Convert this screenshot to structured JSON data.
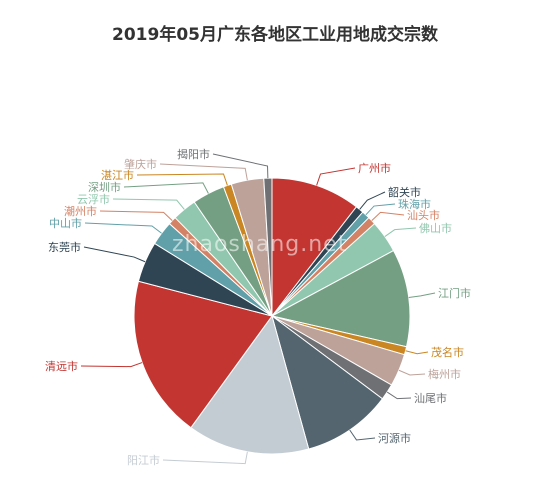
{
  "chart_data": {
    "type": "pie",
    "title": "2019年05月广东各地区工业用地成交宗数",
    "start_angle_deg": 90,
    "direction": "clockwise",
    "slices": [
      {
        "label": "广州市",
        "value": 11,
        "color": "#c23531"
      },
      {
        "label": "韶关市",
        "value": 1,
        "color": "#2f4554"
      },
      {
        "label": "珠海市",
        "value": 1,
        "color": "#61a0a8"
      },
      {
        "label": "汕头市",
        "value": 1,
        "color": "#d48265"
      },
      {
        "label": "佛山市",
        "value": 4,
        "color": "#91c7ae"
      },
      {
        "label": "江门市",
        "value": 12,
        "color": "#749f83"
      },
      {
        "label": "茂名市",
        "value": 1,
        "color": "#ca8622"
      },
      {
        "label": "梅州市",
        "value": 4,
        "color": "#bda29a"
      },
      {
        "label": "汕尾市",
        "value": 2,
        "color": "#6e7074"
      },
      {
        "label": "河源市",
        "value": 11,
        "color": "#546570"
      },
      {
        "label": "阳江市",
        "value": 15,
        "color": "#c4ccd3"
      },
      {
        "label": "清远市",
        "value": 20,
        "color": "#c23531"
      },
      {
        "label": "东莞市",
        "value": 5,
        "color": "#2f4554"
      },
      {
        "label": "中山市",
        "value": 3,
        "color": "#61a0a8"
      },
      {
        "label": "潮州市",
        "value": 1,
        "color": "#d48265"
      },
      {
        "label": "云浮市",
        "value": 3,
        "color": "#91c7ae"
      },
      {
        "label": "深圳市",
        "value": 4,
        "color": "#749f83"
      },
      {
        "label": "湛江市",
        "value": 1,
        "color": "#ca8622"
      },
      {
        "label": "肇庆市",
        "value": 4,
        "color": "#bda29a"
      },
      {
        "label": "揭阳市",
        "value": 1,
        "color": "#6e7074"
      }
    ]
  },
  "watermark": "zhaoshang.net"
}
